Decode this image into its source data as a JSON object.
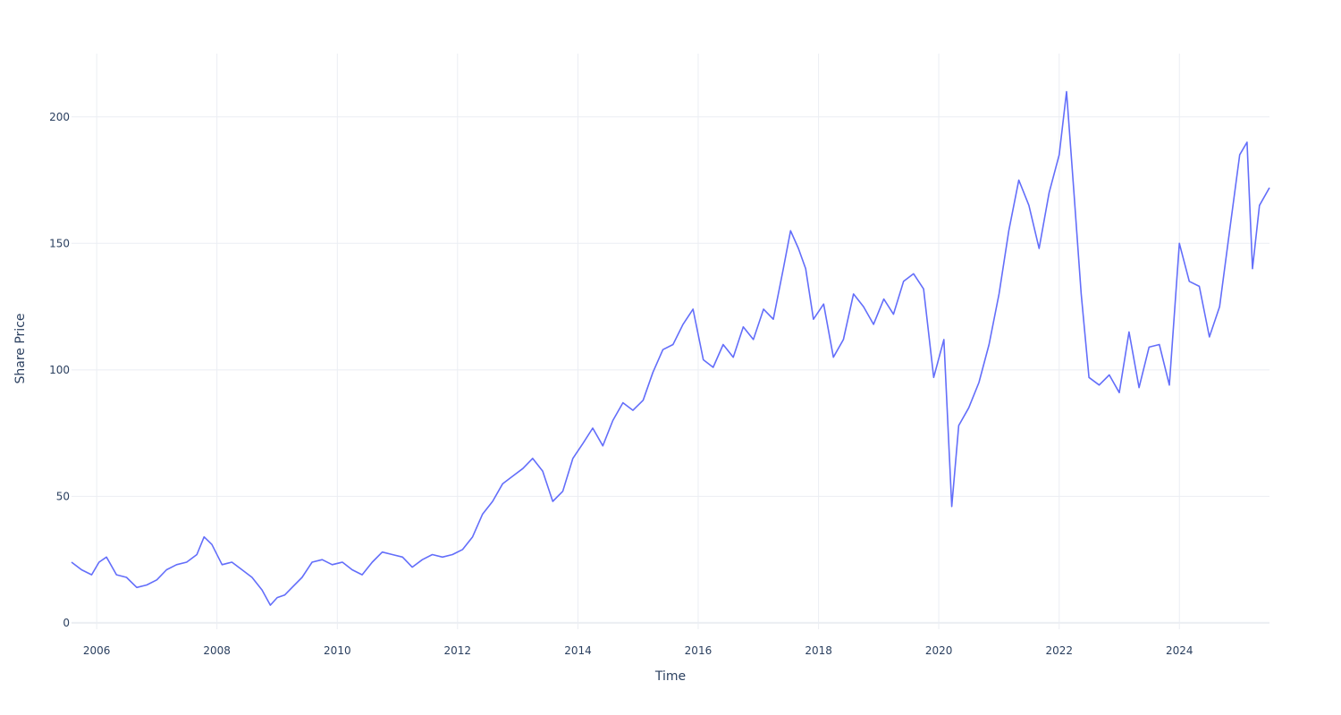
{
  "chart_data": {
    "type": "line",
    "title": "",
    "xlabel": "Time",
    "ylabel": "Share Price",
    "xlim": [
      "2005-08-01",
      "2025-07-01"
    ],
    "ylim": [
      -2.5,
      225
    ],
    "x_ticks": [
      "2006",
      "2008",
      "2010",
      "2012",
      "2014",
      "2016",
      "2018",
      "2020",
      "2022",
      "2024"
    ],
    "y_ticks": [
      0,
      50,
      100,
      150,
      200
    ],
    "grid": true,
    "legend": "none",
    "line_color": "#636efa",
    "series": [
      {
        "x": [
          "2005-08-01",
          "2005-10-01",
          "2005-12-01",
          "2006-01-15",
          "2006-03-01",
          "2006-05-01",
          "2006-07-01",
          "2006-09-01",
          "2006-11-01",
          "2007-01-01",
          "2007-03-01",
          "2007-05-01",
          "2007-07-01",
          "2007-09-01",
          "2007-10-15",
          "2007-12-01",
          "2008-02-01",
          "2008-04-01",
          "2008-06-01",
          "2008-08-01",
          "2008-10-01",
          "2008-11-20",
          "2009-01-01",
          "2009-02-15",
          "2009-04-01",
          "2009-06-01",
          "2009-08-01",
          "2009-10-01",
          "2009-12-01",
          "2010-02-01",
          "2010-04-01",
          "2010-06-01",
          "2010-08-01",
          "2010-10-01",
          "2010-12-01",
          "2011-02-01",
          "2011-04-01",
          "2011-06-01",
          "2011-08-01",
          "2011-10-01",
          "2011-12-01",
          "2012-02-01",
          "2012-04-01",
          "2012-06-01",
          "2012-08-01",
          "2012-10-01",
          "2012-12-01",
          "2013-02-01",
          "2013-04-01",
          "2013-06-01",
          "2013-08-01",
          "2013-10-01",
          "2013-12-01",
          "2014-02-01",
          "2014-04-01",
          "2014-06-01",
          "2014-08-01",
          "2014-10-01",
          "2014-12-01",
          "2015-02-01",
          "2015-04-01",
          "2015-06-01",
          "2015-08-01",
          "2015-10-01",
          "2015-12-01",
          "2016-02-01",
          "2016-04-01",
          "2016-06-01",
          "2016-08-01",
          "2016-10-01",
          "2016-12-01",
          "2017-02-01",
          "2017-04-01",
          "2017-06-01",
          "2017-07-15",
          "2017-09-01",
          "2017-10-15",
          "2017-12-01",
          "2018-02-01",
          "2018-04-01",
          "2018-06-01",
          "2018-08-01",
          "2018-10-01",
          "2018-12-01",
          "2019-02-01",
          "2019-04-01",
          "2019-06-01",
          "2019-08-01",
          "2019-10-01",
          "2019-12-01",
          "2020-02-01",
          "2020-03-20",
          "2020-05-01",
          "2020-07-01",
          "2020-09-01",
          "2020-11-01",
          "2021-01-01",
          "2021-03-01",
          "2021-05-01",
          "2021-07-01",
          "2021-09-01",
          "2021-11-01",
          "2022-01-01",
          "2022-02-15",
          "2022-04-01",
          "2022-05-15",
          "2022-07-01",
          "2022-09-01",
          "2022-11-01",
          "2023-01-01",
          "2023-03-01",
          "2023-05-01",
          "2023-07-01",
          "2023-09-01",
          "2023-11-01",
          "2024-01-01",
          "2024-03-01",
          "2024-05-01",
          "2024-07-01",
          "2024-09-01",
          "2024-11-01",
          "2025-01-01",
          "2025-02-15",
          "2025-03-20",
          "2025-05-01",
          "2025-07-01"
        ],
        "values": [
          24,
          21,
          19,
          24,
          26,
          19,
          18,
          14,
          15,
          17,
          21,
          23,
          24,
          27,
          34,
          31,
          23,
          24,
          21,
          18,
          13,
          7,
          10,
          11,
          14,
          18,
          24,
          25,
          23,
          24,
          21,
          19,
          24,
          28,
          27,
          26,
          22,
          25,
          27,
          26,
          27,
          29,
          34,
          43,
          48,
          55,
          58,
          61,
          65,
          60,
          48,
          52,
          65,
          71,
          77,
          70,
          80,
          87,
          84,
          88,
          99,
          108,
          110,
          118,
          124,
          104,
          101,
          110,
          105,
          117,
          112,
          124,
          120,
          140,
          155,
          148,
          140,
          120,
          126,
          105,
          112,
          130,
          125,
          118,
          128,
          122,
          135,
          138,
          132,
          97,
          112,
          46,
          78,
          85,
          95,
          110,
          130,
          155,
          175,
          165,
          148,
          170,
          185,
          210,
          170,
          130,
          97,
          94,
          98,
          91,
          115,
          93,
          109,
          110,
          94,
          150,
          135,
          133,
          113,
          125,
          155,
          185,
          190,
          140,
          165,
          172
        ]
      }
    ]
  }
}
